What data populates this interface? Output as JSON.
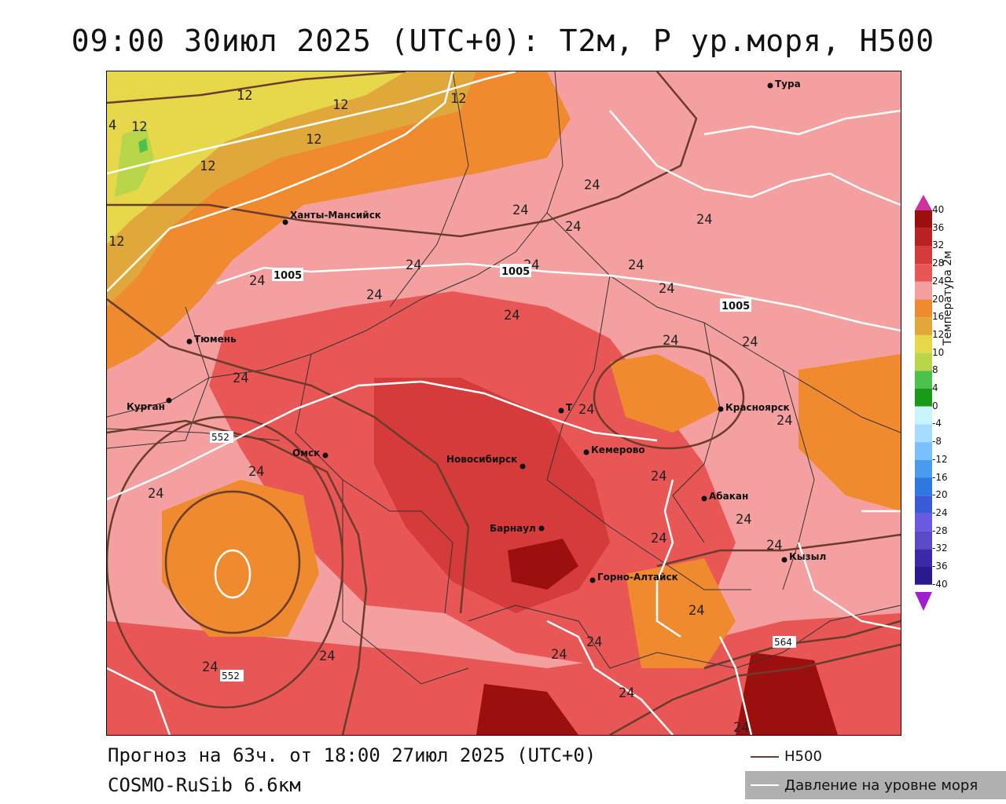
{
  "header": {
    "title": "09:00 30июл 2025 (UTC+0): T2м, P ур.моря, H500"
  },
  "footer": {
    "forecast": "Прогноз на 63ч. от 18:00 27июл 2025 (UTC+0)",
    "model": "COSMO-RuSib 6.6км"
  },
  "legend": {
    "h500_label": "H500",
    "h500_color": "#6b3b2b",
    "pressure_label": "Давление на уровне моря",
    "pressure_color": "#ffffff"
  },
  "colorbar": {
    "title": "Температура 2м",
    "ticks": [
      "40",
      "36",
      "32",
      "28",
      "24",
      "20",
      "16",
      "12",
      "10",
      "8",
      "4",
      "0",
      "-4",
      "-8",
      "-12",
      "-16",
      "-20",
      "-24",
      "-28",
      "-32",
      "-36",
      "-40"
    ],
    "colors": [
      "#9b0f0f",
      "#b82222",
      "#d63b3b",
      "#e85656",
      "#f4a0a0",
      "#f08a2e",
      "#e0a83a",
      "#e6d84a",
      "#b9d64a",
      "#4cc24c",
      "#1a9a1a",
      "#c8f4ff",
      "#a6dcff",
      "#78c0ff",
      "#4a9cf0",
      "#2e78e0",
      "#3a5ad8",
      "#6a5ae0",
      "#5a4ac8",
      "#3a2aa8",
      "#2a1a90",
      "#1a0a70"
    ]
  },
  "map": {
    "cities": [
      {
        "name": "Тура"
      },
      {
        "name": "Ханты-Мансийск"
      },
      {
        "name": "Тюмень"
      },
      {
        "name": "Курган"
      },
      {
        "name": "Омск"
      },
      {
        "name": "Новосибирск"
      },
      {
        "name": "Т"
      },
      {
        "name": "Кемерово"
      },
      {
        "name": "Красноярск"
      },
      {
        "name": "Абакан"
      },
      {
        "name": "Барнаул"
      },
      {
        "name": "Горно-Алтайск"
      },
      {
        "name": "Кызыл"
      }
    ],
    "isotherm_labels": [
      "12",
      "12",
      "12",
      "12",
      "12",
      "12",
      "12",
      "4",
      "24",
      "24",
      "24",
      "24",
      "24",
      "24",
      "24",
      "24",
      "24",
      "24",
      "24",
      "24",
      "24",
      "24",
      "24",
      "24",
      "24",
      "24",
      "24",
      "24",
      "24",
      "24",
      "24",
      "24",
      "24",
      "24",
      "24",
      "24",
      "24"
    ],
    "pressure_labels": [
      "1005",
      "1005",
      "1005"
    ],
    "h500_labels": [
      "552",
      "552",
      "564"
    ]
  }
}
